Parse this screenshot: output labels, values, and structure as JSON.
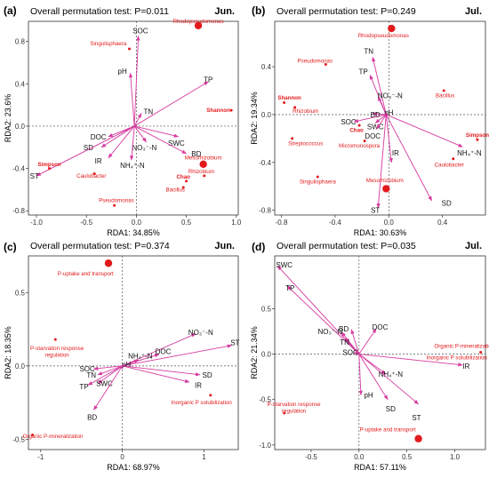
{
  "colors": {
    "arrow": "#d63a9f",
    "point": "#e31a1c",
    "axis_text": "#333333",
    "zero_line": "#555555"
  },
  "chart_data": [
    {
      "type": "scatter",
      "panel_label": "(a)",
      "test_text": "Overall permutation test: P=0.011",
      "month": "Jun.",
      "xlabel": "RDA1: 34.85%",
      "ylabel": "RDA2: 23.6%",
      "xlim": [
        -1.08,
        1.02
      ],
      "ylim": [
        -0.84,
        0.99
      ],
      "xticks": [
        -1.0,
        -0.5,
        0.0,
        0.5,
        1.0
      ],
      "xtick_labels": [
        "-1.0",
        "-0.5",
        "0.0",
        "0.5",
        "1.0"
      ],
      "yticks": [
        -0.8,
        -0.4,
        0.0,
        0.4,
        0.8
      ],
      "ytick_labels": [
        "-0.8",
        "-0.4",
        "0.0",
        "0.4",
        "0.8"
      ],
      "origin": [
        -0.02,
        0.0
      ],
      "vectors": [
        {
          "label": "SOC",
          "x": 0.02,
          "y": 0.85,
          "lx": 0.04,
          "ly": 0.9
        },
        {
          "label": "pH",
          "x": -0.06,
          "y": 0.5,
          "lx": -0.14,
          "ly": 0.52
        },
        {
          "label": "TP",
          "x": 0.72,
          "y": 0.42,
          "lx": 0.72,
          "ly": 0.44
        },
        {
          "label": "TN",
          "x": 0.05,
          "y": 0.12,
          "lx": 0.12,
          "ly": 0.14
        },
        {
          "label": "SWC",
          "x": 0.42,
          "y": -0.1,
          "lx": 0.4,
          "ly": -0.16
        },
        {
          "label": "BD",
          "x": 0.5,
          "y": -0.26,
          "lx": 0.6,
          "ly": -0.26
        },
        {
          "label": "NO₃⁻-N",
          "x": 0.1,
          "y": -0.15,
          "lx": 0.08,
          "ly": -0.2
        },
        {
          "label": "NH₄⁺-N",
          "x": -0.05,
          "y": -0.32,
          "lx": -0.04,
          "ly": -0.37
        },
        {
          "label": "DOC",
          "x": -0.28,
          "y": -0.1,
          "lx": -0.38,
          "ly": -0.1
        },
        {
          "label": "SD",
          "x": -0.35,
          "y": -0.2,
          "lx": -0.48,
          "ly": -0.2
        },
        {
          "label": "IR",
          "x": -0.28,
          "y": -0.3,
          "lx": -0.38,
          "ly": -0.33
        },
        {
          "label": "ST",
          "x": -1.0,
          "y": -0.47,
          "lx": -1.02,
          "ly": -0.47
        }
      ],
      "points": [
        {
          "label": "Rhodopseudomonas",
          "x": 0.62,
          "y": 0.95,
          "size": "large",
          "lx": 0.62,
          "ly": 0.99
        },
        {
          "label": "Singulisphaera",
          "x": -0.07,
          "y": 0.73,
          "size": "small",
          "lx": -0.28,
          "ly": 0.78
        },
        {
          "label": "Shannon",
          "x": 0.95,
          "y": 0.15,
          "size": "small",
          "lx": 0.82,
          "ly": 0.15,
          "bold": true
        },
        {
          "label": "Simpson",
          "x": -0.87,
          "y": -0.4,
          "size": "small",
          "lx": -0.87,
          "ly": -0.36,
          "bold": true
        },
        {
          "label": "Caulobacter",
          "x": -0.42,
          "y": -0.45,
          "size": "small",
          "lx": -0.45,
          "ly": -0.47
        },
        {
          "label": "Mesorhizobium",
          "x": 0.67,
          "y": -0.36,
          "size": "large",
          "lx": 0.67,
          "ly": -0.3
        },
        {
          "label": "Rhizobium",
          "x": 0.68,
          "y": -0.47,
          "size": "small",
          "lx": 0.65,
          "ly": -0.43
        },
        {
          "label": "Chao",
          "x": 0.5,
          "y": -0.52,
          "size": "small",
          "lx": 0.47,
          "ly": -0.48,
          "bold": true
        },
        {
          "label": "Bacillus",
          "x": 0.47,
          "y": -0.58,
          "size": "small",
          "lx": 0.39,
          "ly": -0.6
        },
        {
          "label": "Pseudomonas",
          "x": -0.22,
          "y": -0.75,
          "size": "small",
          "lx": -0.2,
          "ly": -0.7
        }
      ]
    },
    {
      "type": "scatter",
      "panel_label": "(b)",
      "test_text": "Overall permutation test: P=0.249",
      "month": "Jul.",
      "xlabel": "RDA1: 30.63%",
      "ylabel": "RDA2: 19.34%",
      "xlim": [
        -0.85,
        0.72
      ],
      "ylim": [
        -0.84,
        0.78
      ],
      "xticks": [
        -0.8,
        -0.4,
        0.0,
        0.4
      ],
      "xtick_labels": [
        "-0.8",
        "-0.4",
        "0.0",
        "0.4"
      ],
      "yticks": [
        -0.8,
        -0.4,
        0.0,
        0.4
      ],
      "ytick_labels": [
        "-0.8",
        "-0.4",
        "0.0",
        "0.4"
      ],
      "origin": [
        -0.02,
        0.0
      ],
      "vectors": [
        {
          "label": "TN",
          "x": -0.12,
          "y": 0.48,
          "lx": -0.15,
          "ly": 0.53
        },
        {
          "label": "TP",
          "x": -0.14,
          "y": 0.33,
          "lx": -0.19,
          "ly": 0.36
        },
        {
          "label": "NO₃⁻-N",
          "x": -0.08,
          "y": 0.15,
          "lx": 0.01,
          "ly": 0.16
        },
        {
          "label": "pH",
          "x": -0.02,
          "y": 0.02,
          "lx": 0.0,
          "ly": 0.02
        },
        {
          "label": "BD",
          "x": -0.12,
          "y": 0.01,
          "lx": -0.1,
          "ly": 0.0
        },
        {
          "label": "SOC",
          "x": -0.26,
          "y": -0.06,
          "lx": -0.3,
          "ly": -0.06
        },
        {
          "label": "SWC",
          "x": -0.1,
          "y": -0.07,
          "lx": -0.1,
          "ly": -0.1
        },
        {
          "label": "DOC",
          "x": -0.09,
          "y": -0.12,
          "lx": -0.12,
          "ly": -0.18
        },
        {
          "label": "IR",
          "x": 0.02,
          "y": -0.4,
          "lx": 0.05,
          "ly": -0.32
        },
        {
          "label": "NH₄⁺-N",
          "x": 0.55,
          "y": -0.27,
          "lx": 0.6,
          "ly": -0.32
        },
        {
          "label": "SD",
          "x": 0.32,
          "y": -0.72,
          "lx": 0.43,
          "ly": -0.74
        },
        {
          "label": "ST",
          "x": -0.08,
          "y": -0.78,
          "lx": -0.1,
          "ly": -0.8
        }
      ],
      "points": [
        {
          "label": "Rhodopseudomonas",
          "x": 0.02,
          "y": 0.72,
          "size": "large",
          "lx": -0.04,
          "ly": 0.66
        },
        {
          "label": "Pseudomonas",
          "x": -0.47,
          "y": 0.42,
          "size": "small",
          "lx": -0.55,
          "ly": 0.45
        },
        {
          "label": "Bacillus",
          "x": 0.41,
          "y": 0.2,
          "size": "small",
          "lx": 0.42,
          "ly": 0.16
        },
        {
          "label": "Shannon",
          "x": -0.78,
          "y": 0.1,
          "size": "small",
          "lx": -0.74,
          "ly": 0.14,
          "bold": true
        },
        {
          "label": "Rhizobium",
          "x": -0.7,
          "y": 0.06,
          "size": "small",
          "lx": -0.62,
          "ly": 0.03
        },
        {
          "label": "Chao",
          "x": -0.22,
          "y": -0.09,
          "size": "small",
          "lx": -0.24,
          "ly": -0.13,
          "bold": true
        },
        {
          "label": "Micromonospora",
          "x": -0.18,
          "y": -0.22,
          "size": "small",
          "lx": -0.22,
          "ly": -0.26
        },
        {
          "label": "Streptococcus",
          "x": -0.72,
          "y": -0.2,
          "size": "small",
          "lx": -0.62,
          "ly": -0.24
        },
        {
          "label": "Simpson",
          "x": 0.66,
          "y": -0.21,
          "size": "small",
          "lx": 0.66,
          "ly": -0.17,
          "bold": true
        },
        {
          "label": "Caulobacter",
          "x": 0.48,
          "y": -0.37,
          "size": "small",
          "lx": 0.45,
          "ly": -0.42
        },
        {
          "label": "Singulisphaera",
          "x": -0.53,
          "y": -0.52,
          "size": "small",
          "lx": -0.53,
          "ly": -0.56
        },
        {
          "label": "Mesorhizobium",
          "x": -0.02,
          "y": -0.62,
          "size": "large",
          "lx": -0.03,
          "ly": -0.55
        }
      ]
    },
    {
      "type": "scatter",
      "panel_label": "(c)",
      "test_text": "Overall permutation test: P=0.374",
      "month": "Jun.",
      "xlabel": "RDA1: 68.97%",
      "ylabel": "RDA2: 18.35%",
      "xlim": [
        -1.15,
        1.42
      ],
      "ylim": [
        -0.57,
        0.75
      ],
      "xticks": [
        -1,
        0,
        1
      ],
      "xtick_labels": [
        "-1",
        "0",
        "1"
      ],
      "yticks": [
        -0.5,
        0.0,
        0.5
      ],
      "ytick_labels": [
        "-0.5",
        "0.0",
        "0.5"
      ],
      "origin": [
        0.0,
        0.0
      ],
      "vectors": [
        {
          "label": "NO₃⁻-N",
          "x": 0.9,
          "y": 0.22,
          "lx": 0.96,
          "ly": 0.23
        },
        {
          "label": "ST",
          "x": 1.34,
          "y": 0.14,
          "lx": 1.38,
          "ly": 0.16
        },
        {
          "label": "DOC",
          "x": 0.45,
          "y": 0.08,
          "lx": 0.5,
          "ly": 0.1
        },
        {
          "label": "NH₄⁺-N",
          "x": 0.2,
          "y": 0.04,
          "lx": 0.22,
          "ly": 0.07
        },
        {
          "label": "pH",
          "x": 0.01,
          "y": 0.01,
          "lx": 0.05,
          "ly": 0.01
        },
        {
          "label": "SOC",
          "x": -0.35,
          "y": -0.02,
          "lx": -0.43,
          "ly": -0.02
        },
        {
          "label": "TN",
          "x": -0.3,
          "y": -0.06,
          "lx": -0.38,
          "ly": -0.06
        },
        {
          "label": "SWC",
          "x": -0.3,
          "y": -0.12,
          "lx": -0.22,
          "ly": -0.12
        },
        {
          "label": "TP",
          "x": -0.42,
          "y": -0.13,
          "lx": -0.47,
          "ly": -0.14
        },
        {
          "label": "SD",
          "x": 0.95,
          "y": -0.06,
          "lx": 1.04,
          "ly": -0.06
        },
        {
          "label": "IR",
          "x": 0.82,
          "y": -0.11,
          "lx": 0.93,
          "ly": -0.13
        },
        {
          "label": "BD",
          "x": -0.35,
          "y": -0.3,
          "lx": -0.37,
          "ly": -0.35
        }
      ],
      "points": [
        {
          "label": "P-uptake and transport",
          "x": -0.17,
          "y": 0.7,
          "size": "large",
          "lx": -0.45,
          "ly": 0.63
        },
        {
          "label": "P-starvation response\nregulation",
          "x": -0.82,
          "y": 0.18,
          "size": "small",
          "lx": -0.8,
          "ly": 0.12
        },
        {
          "label": "Inorganic P solubilization",
          "x": 1.08,
          "y": -0.2,
          "size": "small",
          "lx": 0.97,
          "ly": -0.25
        },
        {
          "label": "Organic P-mineralization",
          "x": -1.1,
          "y": -0.47,
          "size": "small",
          "lx": -0.85,
          "ly": -0.48
        }
      ]
    },
    {
      "type": "scatter",
      "panel_label": "(d)",
      "test_text": "Overall permutation test: P=0.035",
      "month": "Jul.",
      "xlabel": "RDA1: 57.11%",
      "ylabel": "RDA2: 21.34%",
      "xlim": [
        -0.88,
        1.32
      ],
      "ylim": [
        -1.05,
        1.08
      ],
      "xticks": [
        -0.5,
        0.0,
        0.5,
        1.0
      ],
      "xtick_labels": [
        "-0.5",
        "0.0",
        "0.5",
        "1.0"
      ],
      "yticks": [
        -1.0,
        -0.5,
        0.0,
        0.5
      ],
      "ytick_labels": [
        "-1.0",
        "-0.5",
        "0.0",
        "0.5"
      ],
      "origin": [
        0.0,
        0.0
      ],
      "vectors": [
        {
          "label": "SWC",
          "x": -0.85,
          "y": 0.97,
          "lx": -0.78,
          "ly": 0.98
        },
        {
          "label": "TP",
          "x": -0.75,
          "y": 0.75,
          "lx": -0.72,
          "ly": 0.73
        },
        {
          "label": "NO₃⁻-N",
          "x": -0.18,
          "y": 0.24,
          "lx": -0.3,
          "ly": 0.25
        },
        {
          "label": "TN",
          "x": -0.14,
          "y": 0.18,
          "lx": -0.15,
          "ly": 0.13
        },
        {
          "label": "BD",
          "x": -0.08,
          "y": 0.27,
          "lx": -0.16,
          "ly": 0.28
        },
        {
          "label": "DOC",
          "x": 0.18,
          "y": 0.28,
          "lx": 0.22,
          "ly": 0.3
        },
        {
          "label": "SOC",
          "x": -0.05,
          "y": 0.02,
          "lx": -0.09,
          "ly": 0.02
        },
        {
          "label": "IR",
          "x": 1.08,
          "y": -0.12,
          "lx": 1.12,
          "ly": -0.13
        },
        {
          "label": "NH₄⁺-N",
          "x": 0.28,
          "y": -0.22,
          "lx": 0.33,
          "ly": -0.22
        },
        {
          "label": "pH",
          "x": 0.02,
          "y": -0.45,
          "lx": 0.1,
          "ly": -0.45
        },
        {
          "label": "SD",
          "x": 0.3,
          "y": -0.5,
          "lx": 0.33,
          "ly": -0.6
        },
        {
          "label": "ST",
          "x": 0.62,
          "y": -0.55,
          "lx": 0.6,
          "ly": -0.7
        }
      ],
      "points": [
        {
          "label": "Organic P-mineralization",
          "x": 1.27,
          "y": 0.02,
          "size": "small",
          "lx": 1.1,
          "ly": 0.09
        },
        {
          "label": "Inorganic P solubilization",
          "x": 1.0,
          "y": -0.04,
          "size": "none",
          "lx": 1.02,
          "ly": -0.04
        },
        {
          "label": "P-starvation response\nregulation",
          "x": -0.78,
          "y": -0.65,
          "size": "small",
          "lx": -0.68,
          "ly": -0.55
        },
        {
          "label": "P-uptake and transport",
          "x": 0.62,
          "y": -0.93,
          "size": "large",
          "lx": 0.3,
          "ly": -0.83
        }
      ]
    }
  ]
}
